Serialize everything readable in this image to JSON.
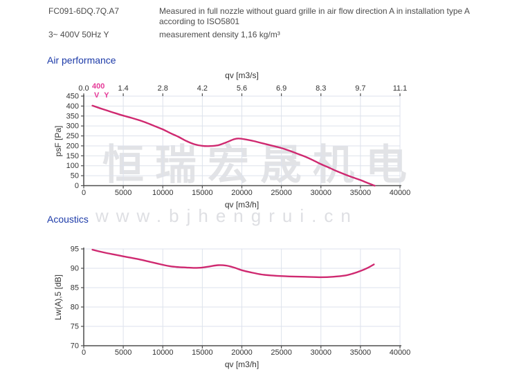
{
  "header": {
    "model": "FC091-6DQ.7Q.A7",
    "power": "3~ 400V 50Hz Y",
    "measurement_note": "Measured in full nozzle without guard grille in air flow direction A in installation type A according to ISO5801",
    "density_note": "measurement density 1,16 kg/m³"
  },
  "sections": {
    "air_performance": "Air performance",
    "acoustics": "Acoustics"
  },
  "series_label": {
    "voltage": "400",
    "phase": "V Y"
  },
  "watermark": {
    "cjk": "恒瑞宏晟机电",
    "url": "www.bjhengrui.cn"
  },
  "colors": {
    "heading_blue": "#1c3aa8",
    "header_text": "#4b4b4b",
    "curve_pink": "#cf2970",
    "label_pink": "#e53a98",
    "grid": "#dde2ec",
    "axis": "#4d4d4d",
    "tick_text": "#333333"
  },
  "chart_data": [
    {
      "type": "line",
      "title": "Air performance",
      "xlabel_top": "qv [m3/s]",
      "xlabel_bottom": "qv [m3/h]",
      "ylabel": "psF [Pa]",
      "xlim": [
        0,
        40000
      ],
      "ylim": [
        0,
        450
      ],
      "x_ticks": [
        0,
        5000,
        10000,
        15000,
        20000,
        25000,
        30000,
        35000,
        40000
      ],
      "x_tick_labels_top": [
        "0.0",
        "1.4",
        "2.8",
        "4.2",
        "5.6",
        "6.9",
        "8.3",
        "9.7",
        "11.1"
      ],
      "y_ticks": [
        0,
        50,
        100,
        150,
        200,
        250,
        300,
        350,
        400,
        450
      ],
      "grid": true,
      "series": [
        {
          "name": "400 V Y",
          "color": "#cf2970",
          "points": [
            [
              1100,
              402
            ],
            [
              2000,
              390
            ],
            [
              3000,
              377
            ],
            [
              4000,
              364
            ],
            [
              5000,
              352
            ],
            [
              6000,
              341
            ],
            [
              7000,
              329
            ],
            [
              8000,
              315
            ],
            [
              9000,
              299
            ],
            [
              10000,
              283
            ],
            [
              11000,
              263
            ],
            [
              12000,
              245
            ],
            [
              13000,
              224
            ],
            [
              14000,
              208
            ],
            [
              15000,
              200
            ],
            [
              16000,
              199
            ],
            [
              17000,
              203
            ],
            [
              18000,
              217
            ],
            [
              19000,
              233
            ],
            [
              19600,
              237
            ],
            [
              20500,
              232
            ],
            [
              21500,
              224
            ],
            [
              22500,
              214
            ],
            [
              24000,
              199
            ],
            [
              25000,
              189
            ],
            [
              26000,
              176
            ],
            [
              27000,
              161
            ],
            [
              28000,
              146
            ],
            [
              29000,
              128
            ],
            [
              30000,
              108
            ],
            [
              31000,
              91
            ],
            [
              32000,
              73
            ],
            [
              33000,
              57
            ],
            [
              34000,
              42
            ],
            [
              35000,
              28
            ],
            [
              36000,
              12
            ],
            [
              36800,
              0
            ]
          ]
        }
      ]
    },
    {
      "type": "line",
      "title": "Acoustics",
      "xlabel_bottom": "qv [m3/h]",
      "ylabel": "Lw(A),5 [dB]",
      "xlim": [
        0,
        40000
      ],
      "ylim": [
        70,
        95
      ],
      "x_ticks": [
        0,
        5000,
        10000,
        15000,
        20000,
        25000,
        30000,
        35000,
        40000
      ],
      "y_ticks": [
        70,
        75,
        80,
        85,
        90,
        95
      ],
      "grid": true,
      "series": [
        {
          "name": "400 V Y",
          "color": "#cf2970",
          "points": [
            [
              1100,
              94.8
            ],
            [
              2500,
              94.1
            ],
            [
              4000,
              93.5
            ],
            [
              5500,
              92.9
            ],
            [
              7000,
              92.3
            ],
            [
              8500,
              91.6
            ],
            [
              10000,
              90.9
            ],
            [
              11000,
              90.5
            ],
            [
              12000,
              90.3
            ],
            [
              13000,
              90.2
            ],
            [
              14000,
              90.1
            ],
            [
              15000,
              90.2
            ],
            [
              16000,
              90.5
            ],
            [
              17000,
              90.8
            ],
            [
              18000,
              90.7
            ],
            [
              19000,
              90.2
            ],
            [
              20000,
              89.5
            ],
            [
              21000,
              89.0
            ],
            [
              22500,
              88.4
            ],
            [
              24000,
              88.1
            ],
            [
              26000,
              87.9
            ],
            [
              28000,
              87.8
            ],
            [
              30000,
              87.7
            ],
            [
              31500,
              87.8
            ],
            [
              33000,
              88.1
            ],
            [
              34000,
              88.6
            ],
            [
              35000,
              89.3
            ],
            [
              36000,
              90.2
            ],
            [
              36700,
              91.0
            ]
          ]
        }
      ]
    }
  ]
}
